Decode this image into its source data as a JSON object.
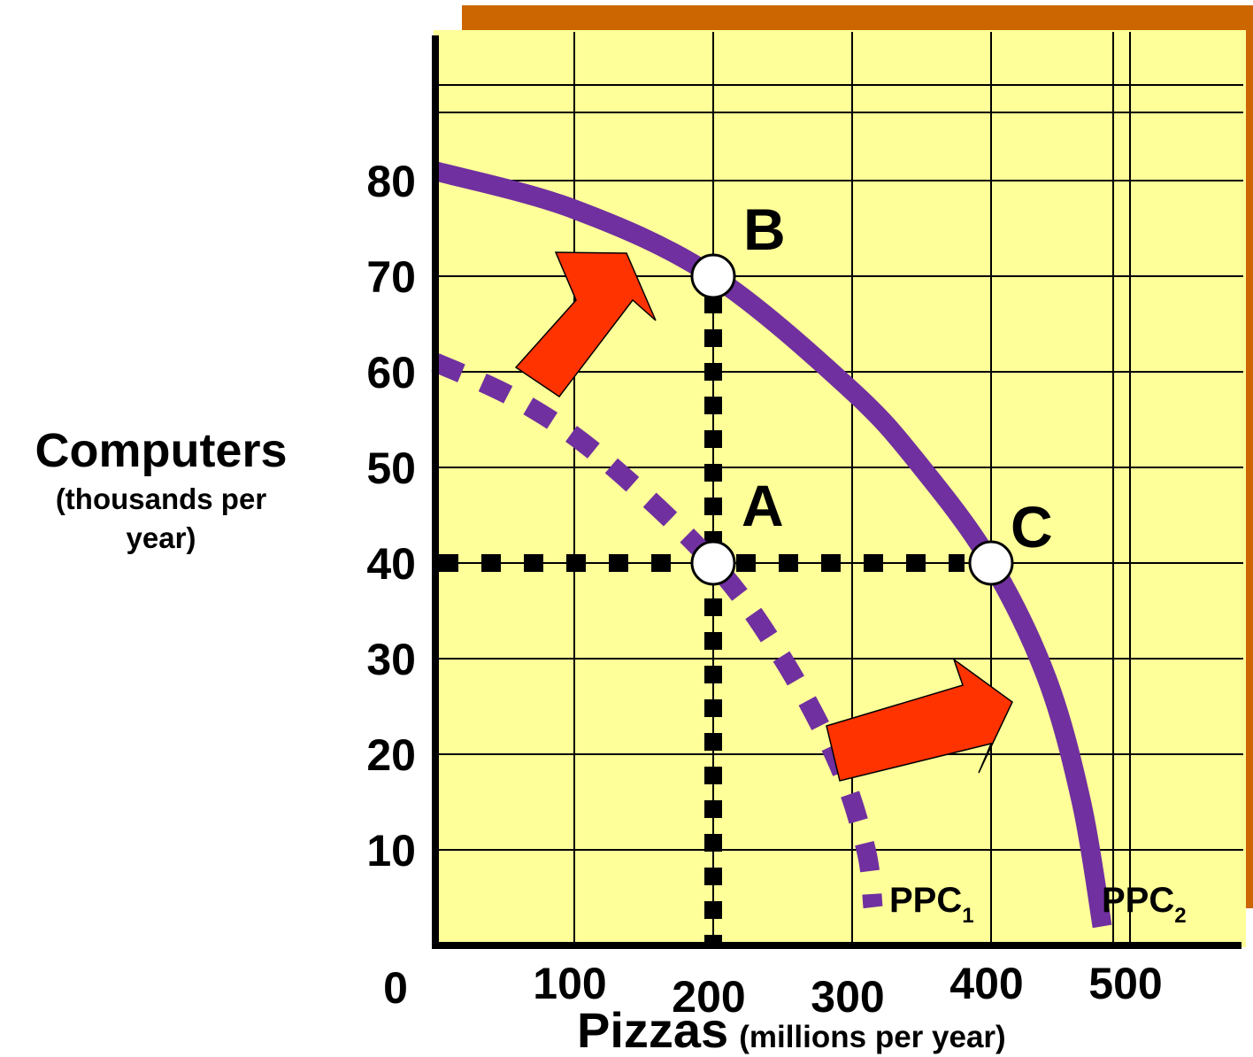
{
  "chart_data": {
    "type": "line",
    "ylabel": "Computers",
    "ylabel_sub_line1": "(thousands per",
    "ylabel_sub_line2": "year)",
    "xlabel": "Pizzas",
    "xlabel_sub": "(millions per year",
    "xlabel_close": ")",
    "origin_label": "0",
    "x_ticks": [
      100,
      200,
      300,
      400,
      500
    ],
    "y_ticks": [
      10,
      20,
      30,
      40,
      50,
      60,
      70,
      80
    ],
    "xlim": [
      0,
      570
    ],
    "ylim": [
      0,
      100
    ],
    "grid": true,
    "colors": {
      "background": "#ffff99",
      "frame_shadow": "#cc6600",
      "curve": "#7030a0",
      "arrow": "#ff3300",
      "axis": "#000000"
    },
    "series": [
      {
        "name": "PPC1",
        "label_main": "PPC",
        "label_sub": "1",
        "style": "dashed",
        "x": [
          0,
          60,
          120,
          200,
          250,
          290,
          310,
          315
        ],
        "y": [
          61,
          57,
          51,
          40,
          30,
          19,
          10,
          4
        ]
      },
      {
        "name": "PPC2",
        "label_main": "PPC",
        "label_sub": "2",
        "style": "solid",
        "x": [
          0,
          100,
          200,
          300,
          350,
          400,
          440,
          465,
          480
        ],
        "y": [
          81,
          77,
          70,
          58,
          50,
          40,
          28,
          15,
          2
        ]
      }
    ],
    "points": [
      {
        "label": "A",
        "x": 200,
        "y": 40
      },
      {
        "label": "B",
        "x": 200,
        "y": 70
      },
      {
        "label": "C",
        "x": 400,
        "y": 40
      }
    ]
  }
}
